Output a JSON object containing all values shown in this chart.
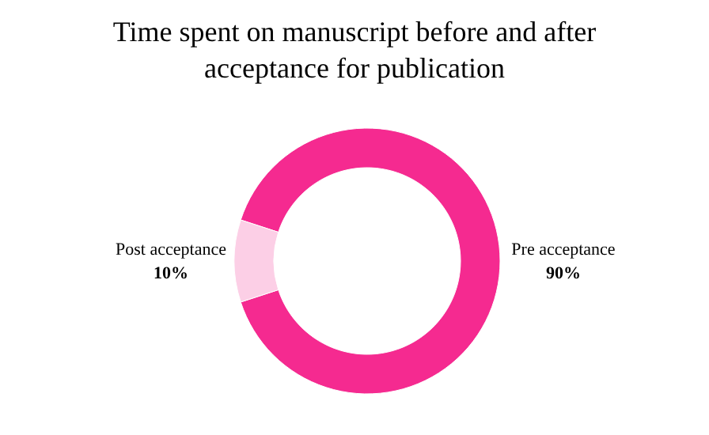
{
  "chart_data": {
    "type": "donut",
    "title": "Time spent on manuscript before and after\nacceptance for publication",
    "categories": [
      "Pre acceptance",
      "Post acceptance"
    ],
    "values": [
      90,
      10
    ],
    "colors": [
      "#f52a90",
      "#fccfe6"
    ],
    "value_labels": [
      "90%",
      "10%"
    ]
  }
}
